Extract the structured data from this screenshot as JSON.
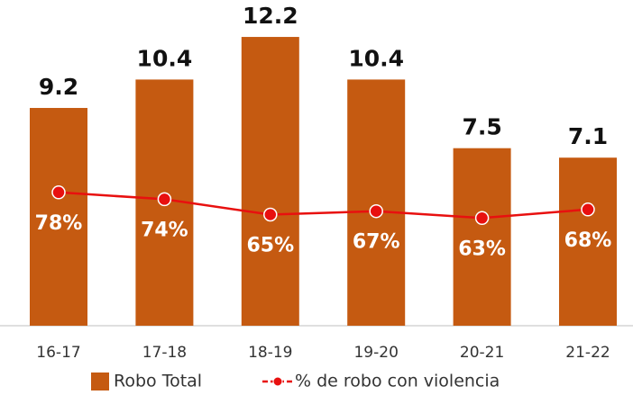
{
  "chart_data": {
    "type": "bar",
    "categories": [
      "16-17",
      "17-18",
      "18-19",
      "19-20",
      "20-21",
      "21-22"
    ],
    "series": [
      {
        "name": "Robo Total",
        "type": "bar",
        "color": "#c55a11",
        "values": [
          9.2,
          10.4,
          12.2,
          10.4,
          7.5,
          7.1
        ]
      },
      {
        "name": "% de robo con violencia",
        "type": "line",
        "axis": "y2",
        "color": "#e8100f",
        "values": [
          78,
          74,
          65,
          67,
          63,
          68
        ],
        "value_labels": [
          "78%",
          "74%",
          "65%",
          "67%",
          "63%",
          "68%"
        ]
      }
    ],
    "ylim": [
      0,
      13
    ],
    "y2lim": [
      0,
      180
    ],
    "legend": "bottom"
  }
}
